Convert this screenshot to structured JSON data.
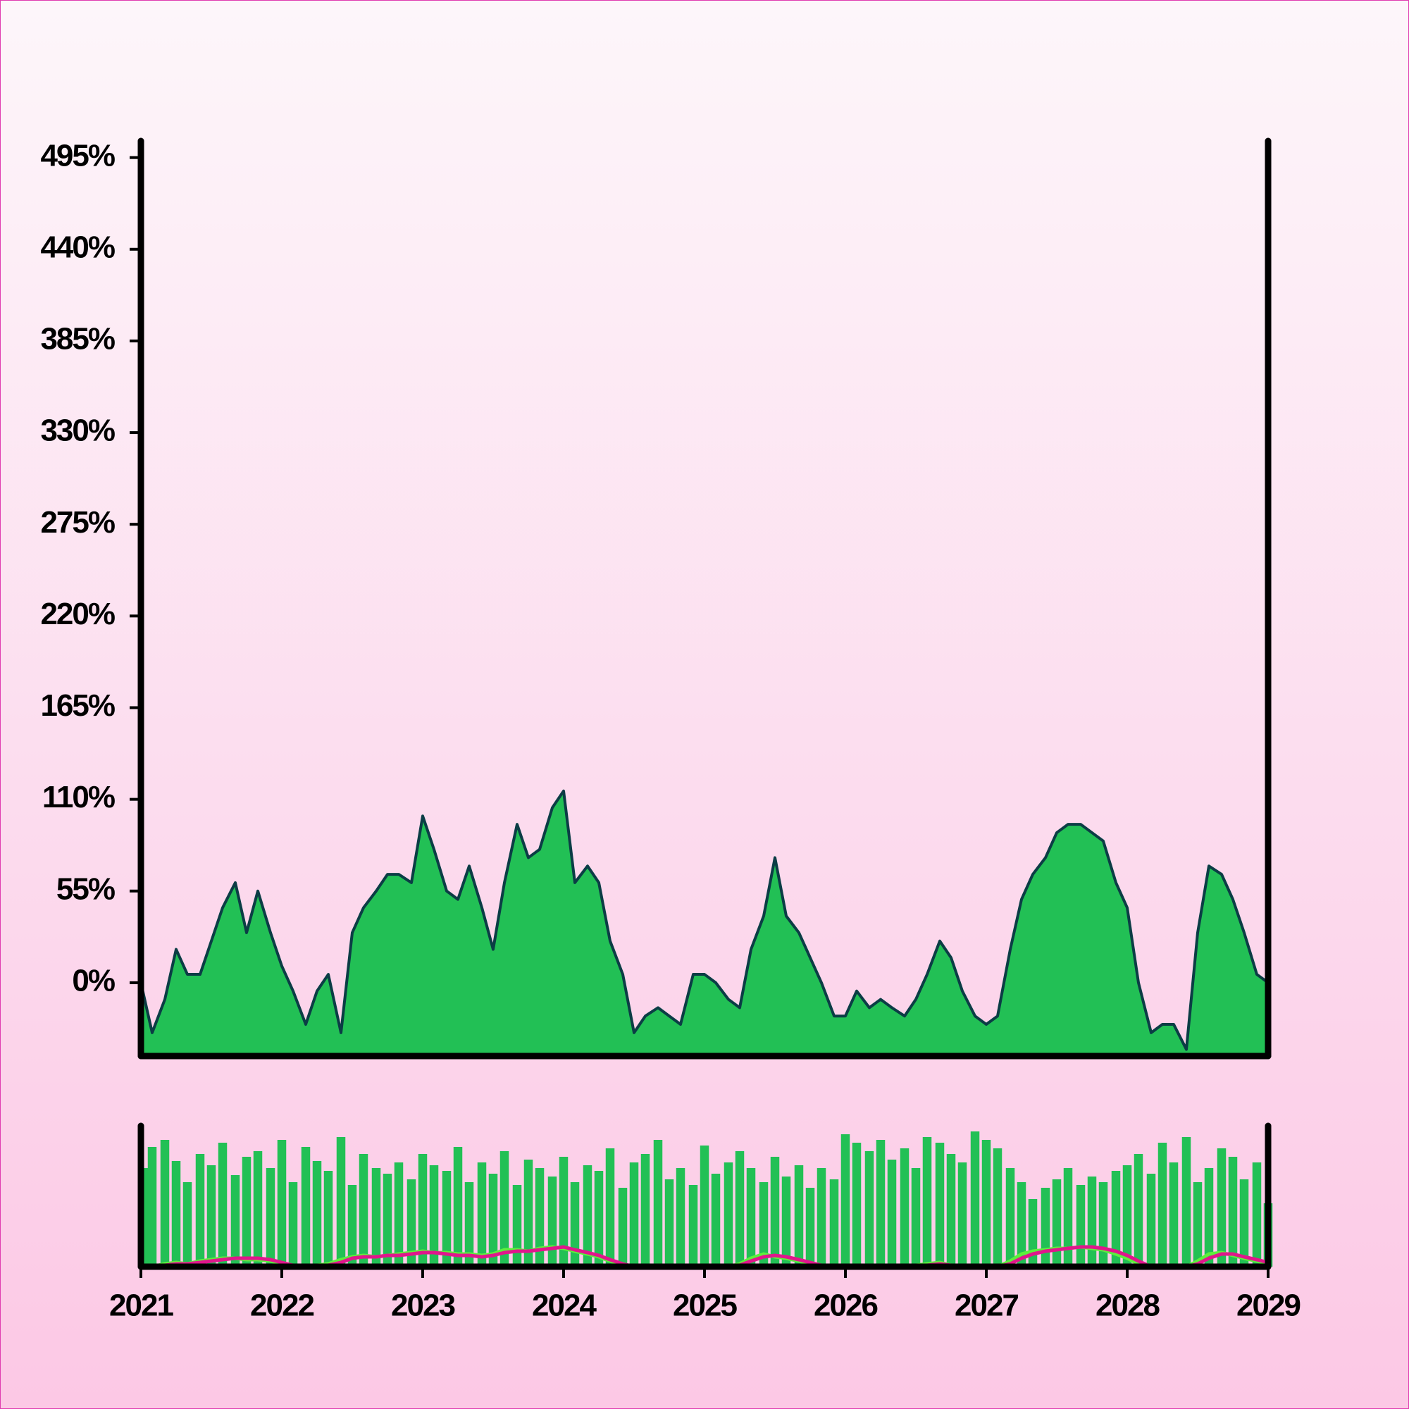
{
  "chart_data": [
    {
      "type": "area",
      "x": [
        2021.0,
        2021.08,
        2021.17,
        2021.25,
        2021.33,
        2021.42,
        2021.5,
        2021.58,
        2021.67,
        2021.75,
        2021.83,
        2021.92,
        2022.0,
        2022.08,
        2022.17,
        2022.25,
        2022.33,
        2022.42,
        2022.5,
        2022.58,
        2022.67,
        2022.75,
        2022.83,
        2022.92,
        2023.0,
        2023.08,
        2023.17,
        2023.25,
        2023.33,
        2023.42,
        2023.5,
        2023.58,
        2023.67,
        2023.75,
        2023.83,
        2023.92,
        2024.0,
        2024.08,
        2024.17,
        2024.25,
        2024.33,
        2024.42,
        2024.5,
        2024.58,
        2024.67,
        2024.75,
        2024.83,
        2024.92,
        2025.0,
        2025.08,
        2025.17,
        2025.25,
        2025.33,
        2025.42,
        2025.5,
        2025.58,
        2025.67,
        2025.75,
        2025.83,
        2025.92,
        2026.0,
        2026.08,
        2026.17,
        2026.25,
        2026.33,
        2026.42,
        2026.5,
        2026.58,
        2026.67,
        2026.75,
        2026.83,
        2026.92,
        2027.0,
        2027.08,
        2027.17,
        2027.25,
        2027.33,
        2027.42,
        2027.5,
        2027.58,
        2027.67,
        2027.75,
        2027.83,
        2027.92,
        2028.0,
        2028.08,
        2028.17,
        2028.25,
        2028.33,
        2028.42,
        2028.5,
        2028.58,
        2028.67,
        2028.75,
        2028.83,
        2028.92,
        2029.0
      ],
      "values": [
        0,
        -30,
        -10,
        20,
        5,
        5,
        25,
        45,
        60,
        30,
        55,
        30,
        10,
        -5,
        -25,
        -5,
        5,
        -30,
        30,
        45,
        55,
        65,
        65,
        60,
        100,
        80,
        55,
        50,
        70,
        45,
        20,
        60,
        95,
        75,
        80,
        105,
        115,
        60,
        70,
        60,
        25,
        5,
        -30,
        -20,
        -15,
        -20,
        -25,
        5,
        5,
        0,
        -10,
        -15,
        20,
        40,
        75,
        40,
        30,
        15,
        0,
        -20,
        -20,
        -5,
        -15,
        -10,
        -15,
        -20,
        -10,
        5,
        25,
        15,
        -5,
        -20,
        -25,
        -20,
        20,
        50,
        65,
        75,
        90,
        95,
        95,
        90,
        85,
        60,
        45,
        0,
        -30,
        -25,
        -25,
        -40,
        30,
        70,
        65,
        50,
        30,
        5,
        0
      ],
      "color": "#22c055",
      "line_color": "#0b3d45",
      "xlim": [
        2021,
        2029
      ],
      "ylim": [
        -44,
        505
      ],
      "yticks": [
        {
          "value": 0,
          "label": "0%"
        },
        {
          "value": 55,
          "label": "55%"
        },
        {
          "value": 110,
          "label": "110%"
        },
        {
          "value": 165,
          "label": "165%"
        },
        {
          "value": 220,
          "label": "220%"
        },
        {
          "value": 275,
          "label": "275%"
        },
        {
          "value": 330,
          "label": "330%"
        },
        {
          "value": 385,
          "label": "385%"
        },
        {
          "value": 440,
          "label": "440%"
        },
        {
          "value": 495,
          "label": "495%"
        }
      ]
    },
    {
      "type": "bar",
      "x": [
        2021.0,
        2021.08,
        2021.17,
        2021.25,
        2021.33,
        2021.42,
        2021.5,
        2021.58,
        2021.67,
        2021.75,
        2021.83,
        2021.92,
        2022.0,
        2022.08,
        2022.17,
        2022.25,
        2022.33,
        2022.42,
        2022.5,
        2022.58,
        2022.67,
        2022.75,
        2022.83,
        2022.92,
        2023.0,
        2023.08,
        2023.17,
        2023.25,
        2023.33,
        2023.42,
        2023.5,
        2023.58,
        2023.67,
        2023.75,
        2023.83,
        2023.92,
        2024.0,
        2024.08,
        2024.17,
        2024.25,
        2024.33,
        2024.42,
        2024.5,
        2024.58,
        2024.67,
        2024.75,
        2024.83,
        2024.92,
        2025.0,
        2025.08,
        2025.17,
        2025.25,
        2025.33,
        2025.42,
        2025.5,
        2025.58,
        2025.67,
        2025.75,
        2025.83,
        2025.92,
        2026.0,
        2026.08,
        2026.17,
        2026.25,
        2026.33,
        2026.42,
        2026.5,
        2026.58,
        2026.67,
        2026.75,
        2026.83,
        2026.92,
        2027.0,
        2027.08,
        2027.17,
        2027.25,
        2027.33,
        2027.42,
        2027.5,
        2027.58,
        2027.67,
        2027.75,
        2027.83,
        2027.92,
        2028.0,
        2028.08,
        2028.17,
        2028.25,
        2028.33,
        2028.42,
        2028.5,
        2028.58,
        2028.67,
        2028.75,
        2028.83,
        2028.92,
        2029.0
      ],
      "values": [
        70,
        85,
        90,
        75,
        60,
        80,
        72,
        88,
        65,
        78,
        82,
        70,
        90,
        60,
        85,
        75,
        68,
        92,
        58,
        80,
        70,
        66,
        74,
        62,
        80,
        72,
        68,
        85,
        60,
        74,
        66,
        82,
        58,
        76,
        70,
        64,
        78,
        60,
        72,
        68,
        84,
        56,
        74,
        80,
        90,
        62,
        70,
        58,
        86,
        66,
        74,
        82,
        70,
        60,
        78,
        64,
        72,
        56,
        70,
        62,
        94,
        88,
        82,
        90,
        76,
        84,
        70,
        92,
        88,
        80,
        74,
        96,
        90,
        84,
        70,
        60,
        48,
        56,
        62,
        70,
        58,
        64,
        60,
        68,
        72,
        80,
        66,
        88,
        74,
        92,
        60,
        70,
        84,
        78,
        62,
        74,
        45
      ],
      "color": "#22c055",
      "lines": [
        {
          "color": "#5cf03c",
          "values": [
            0,
            0,
            2,
            3,
            2,
            4,
            5,
            6,
            6,
            5,
            5,
            4,
            2,
            0,
            0,
            1,
            2,
            5,
            7,
            8,
            7,
            8,
            9,
            10,
            11,
            10,
            10,
            9,
            9,
            8,
            9,
            12,
            12,
            11,
            13,
            14,
            13,
            11,
            9,
            7,
            4,
            1,
            0,
            0,
            0,
            0,
            0,
            0,
            0,
            0,
            0,
            2,
            6,
            9,
            7,
            6,
            4,
            2,
            0,
            0,
            0,
            0,
            0,
            0,
            0,
            0,
            1,
            2,
            3,
            1,
            0,
            0,
            0,
            0,
            4,
            9,
            11,
            12,
            13,
            13,
            14,
            13,
            12,
            9,
            6,
            2,
            0,
            0,
            0,
            0,
            4,
            9,
            10,
            8,
            6,
            4,
            2
          ]
        },
        {
          "color": "#e0168c",
          "values": [
            0,
            0,
            1,
            2,
            2,
            3,
            4,
            5,
            6,
            6,
            6,
            5,
            3,
            1,
            0,
            0,
            1,
            3,
            6,
            7,
            7,
            8,
            8,
            9,
            10,
            10,
            9,
            8,
            8,
            7,
            8,
            10,
            11,
            11,
            12,
            13,
            14,
            12,
            10,
            8,
            5,
            2,
            0,
            0,
            0,
            0,
            0,
            0,
            0,
            0,
            0,
            1,
            4,
            7,
            8,
            7,
            5,
            3,
            1,
            0,
            0,
            0,
            0,
            0,
            0,
            0,
            0,
            1,
            2,
            1,
            0,
            0,
            0,
            0,
            2,
            6,
            9,
            11,
            12,
            13,
            14,
            14,
            13,
            11,
            8,
            4,
            0,
            0,
            0,
            0,
            2,
            6,
            9,
            9,
            7,
            5,
            3
          ]
        }
      ],
      "xlim": [
        2021,
        2029
      ],
      "ylim": [
        0,
        100
      ],
      "xticks": [
        2021,
        2022,
        2023,
        2024,
        2025,
        2026,
        2027,
        2028,
        2029
      ]
    }
  ]
}
